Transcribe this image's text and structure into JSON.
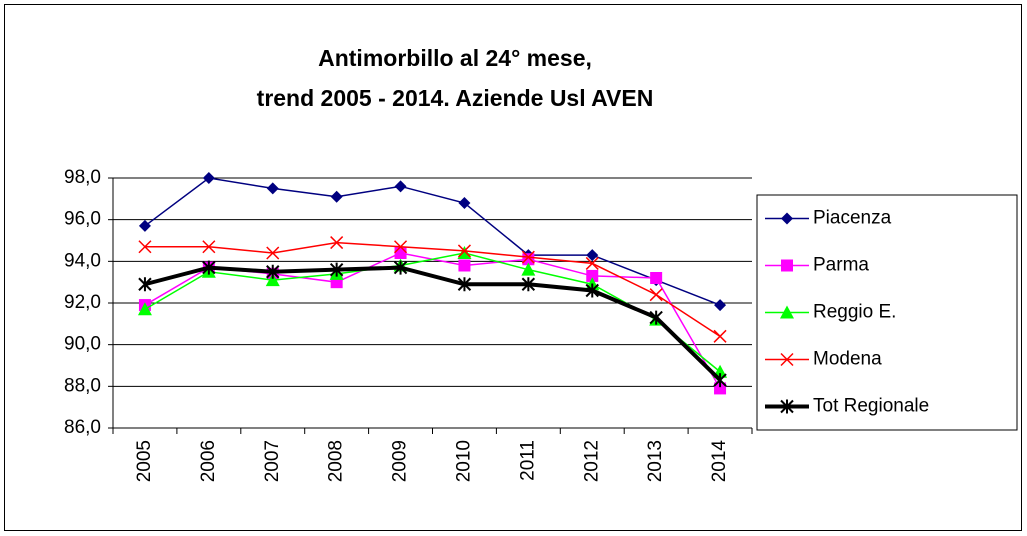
{
  "chart_data": {
    "type": "line",
    "title": [
      "Antimorbillo al 24° mese,",
      "trend 2005 - 2014. Aziende Usl AVEN"
    ],
    "categories": [
      "2005",
      "2006",
      "2007",
      "2008",
      "2009",
      "2010",
      "2011",
      "2012",
      "2013",
      "2014"
    ],
    "series": [
      {
        "name": "Piacenza",
        "color": "#000080",
        "marker": "diamond",
        "line_width": 1.5,
        "values": [
          95.7,
          98.0,
          97.5,
          97.1,
          97.6,
          96.8,
          94.3,
          94.3,
          93.1,
          91.9
        ]
      },
      {
        "name": "Parma",
        "color": "#ff00ff",
        "marker": "square",
        "line_width": 1.5,
        "values": [
          91.9,
          93.7,
          93.4,
          93.0,
          94.4,
          93.8,
          94.1,
          93.3,
          93.2,
          87.9
        ]
      },
      {
        "name": "Reggio E.",
        "color": "#00ff00",
        "marker": "triangle",
        "line_width": 1.5,
        "values": [
          91.7,
          93.5,
          93.1,
          93.4,
          93.8,
          94.4,
          93.6,
          92.9,
          91.2,
          88.7
        ]
      },
      {
        "name": "Modena",
        "color": "#ff0000",
        "marker": "x",
        "line_width": 1.5,
        "values": [
          94.7,
          94.7,
          94.4,
          94.9,
          94.7,
          94.5,
          94.2,
          93.9,
          92.4,
          90.4
        ]
      },
      {
        "name": "Tot Regionale",
        "color": "#000000",
        "marker": "star",
        "line_width": 4,
        "values": [
          92.9,
          93.7,
          93.5,
          93.6,
          93.7,
          92.9,
          92.9,
          92.6,
          91.3,
          88.3
        ]
      }
    ],
    "ylim": [
      86,
      98
    ],
    "yticks": [
      {
        "value": 86,
        "label": "86,0"
      },
      {
        "value": 88,
        "label": "88,0"
      },
      {
        "value": 90,
        "label": "90,0"
      },
      {
        "value": 92,
        "label": "92,0"
      },
      {
        "value": 94,
        "label": "94,0"
      },
      {
        "value": 96,
        "label": "96,0"
      },
      {
        "value": 98,
        "label": "98,0"
      }
    ],
    "grid": true,
    "legend": "right"
  }
}
